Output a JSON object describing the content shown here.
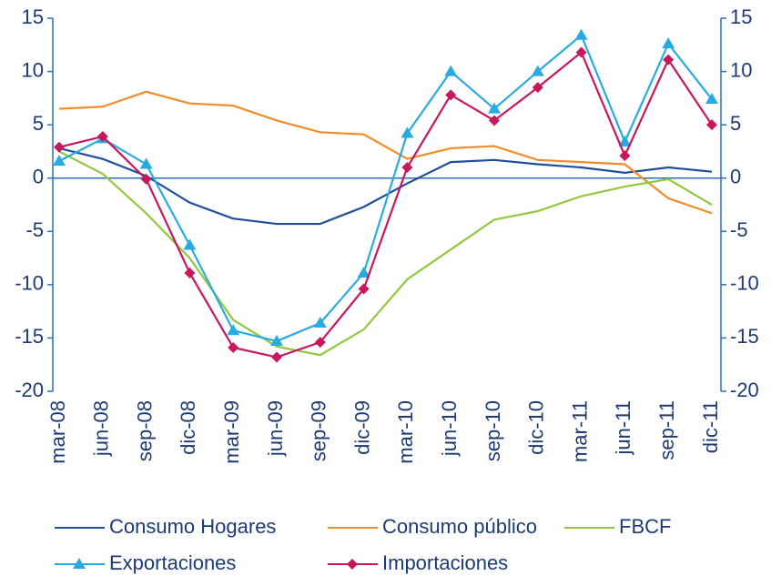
{
  "chart_data": {
    "type": "line",
    "categories": [
      "mar-08",
      "jun-08",
      "sep-08",
      "dic-08",
      "mar-09",
      "jun-09",
      "sep-09",
      "dic-09",
      "mar-10",
      "jun-10",
      "sep-10",
      "dic-10",
      "mar-11",
      "jun-11",
      "sep-11",
      "dic-11"
    ],
    "series": [
      {
        "name": "Consumo Hogares",
        "color": "#1f4e9c",
        "values": [
          2.8,
          1.8,
          0.2,
          -2.3,
          -3.8,
          -4.3,
          -4.3,
          -2.7,
          -0.5,
          1.5,
          1.7,
          1.3,
          1.0,
          0.5,
          1.0,
          0.6
        ]
      },
      {
        "name": "Consumo público",
        "color": "#f28c28",
        "values": [
          6.5,
          6.7,
          8.1,
          7.0,
          6.8,
          5.4,
          4.3,
          4.1,
          1.8,
          2.8,
          3.0,
          1.7,
          1.5,
          1.3,
          -1.9,
          -3.3
        ]
      },
      {
        "name": "FBCF",
        "color": "#92c83e",
        "values": [
          2.5,
          0.4,
          -3.3,
          -7.5,
          -13.3,
          -15.8,
          -16.6,
          -14.2,
          -9.5,
          -6.7,
          -3.9,
          -3.1,
          -1.7,
          -0.8,
          -0.1,
          -2.5
        ]
      },
      {
        "name": "Exportaciones",
        "color": "#29abe2",
        "marker": "triangle",
        "values": [
          1.6,
          3.7,
          1.3,
          -6.3,
          -14.3,
          -15.3,
          -13.6,
          -8.9,
          4.2,
          10.0,
          6.5,
          10.0,
          13.4,
          3.4,
          12.6,
          7.4
        ]
      },
      {
        "name": "Importaciones",
        "color": "#c8175d",
        "marker": "diamond",
        "values": [
          2.9,
          3.9,
          -0.1,
          -8.9,
          -15.9,
          -16.8,
          -15.4,
          -10.4,
          1.0,
          7.8,
          5.4,
          8.5,
          11.8,
          2.1,
          11.1,
          5.0
        ]
      }
    ],
    "ylim": [
      -20,
      15
    ],
    "yticks": [
      -20,
      -15,
      -10,
      -5,
      0,
      5,
      10,
      15
    ],
    "y2lim": [
      -20,
      15
    ],
    "y2ticks": [
      -20,
      -15,
      -10,
      -5,
      0,
      5,
      10,
      15
    ],
    "axis_color": "#2f6fb5",
    "text_color": "#1d3a75"
  }
}
